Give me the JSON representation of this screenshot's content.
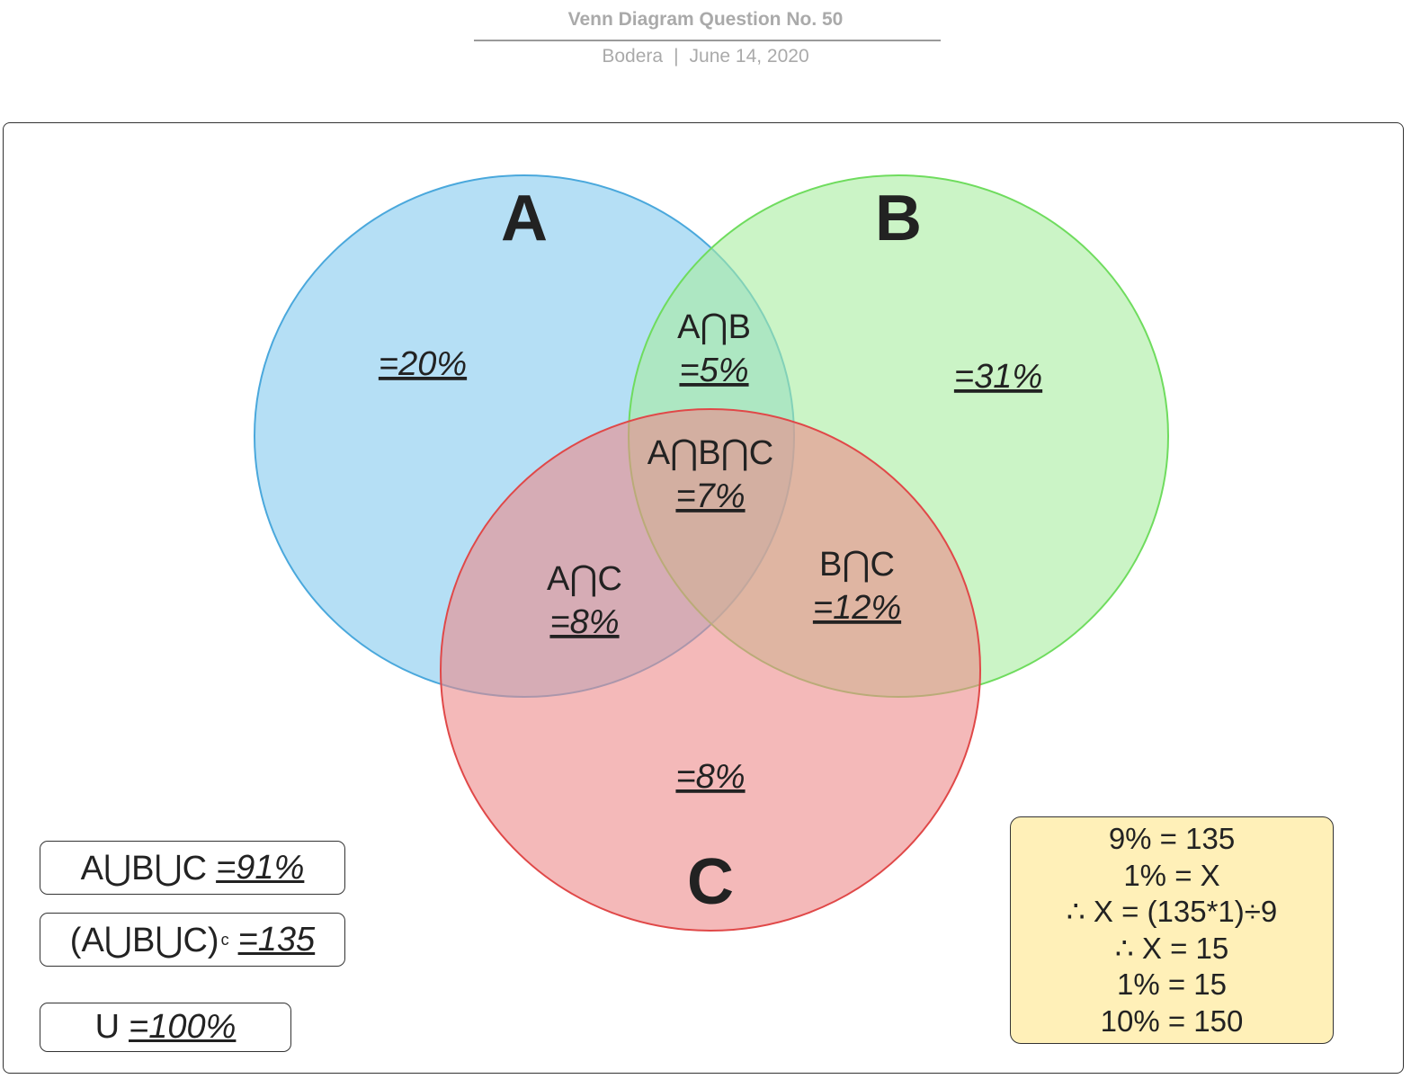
{
  "header": {
    "title": "Venn Diagram Question No. 50",
    "author": "Bodera",
    "separator": "|",
    "date": "June 14, 2020"
  },
  "venn": {
    "sets": {
      "A": {
        "label": "A",
        "color": "#8ecff0",
        "stroke": "#4aa8dc"
      },
      "B": {
        "label": "B",
        "color": "#a9eda0",
        "stroke": "#6fdc5e"
      },
      "C": {
        "label": "C",
        "color": "#ec8a8a",
        "stroke": "#e04848"
      }
    },
    "regions": {
      "a_only": {
        "value": "=20%"
      },
      "b_only": {
        "value": "=31%"
      },
      "c_only": {
        "value": "=8%"
      },
      "a_and_b": {
        "label": "A⋂B",
        "value": "=5%"
      },
      "a_and_c": {
        "label": "A⋂C",
        "value": "=8%"
      },
      "b_and_c": {
        "label": "B⋂C",
        "value": "=12%"
      },
      "a_and_b_and_c": {
        "label": "A⋂B⋂C",
        "value": "=7%"
      }
    }
  },
  "summary": {
    "union": {
      "label": "A⋃B⋃C",
      "value": "=91%"
    },
    "complement": {
      "label": "(A⋃B⋃C)",
      "superscript": "c",
      "value": "=135"
    },
    "universe": {
      "label": "U",
      "value": "=100%"
    }
  },
  "calculation": {
    "lines": [
      "9% = 135",
      "1% = X",
      "∴ X = (135*1)÷9",
      "∴ X = 15",
      "1% = 15",
      "10% = 150"
    ]
  }
}
